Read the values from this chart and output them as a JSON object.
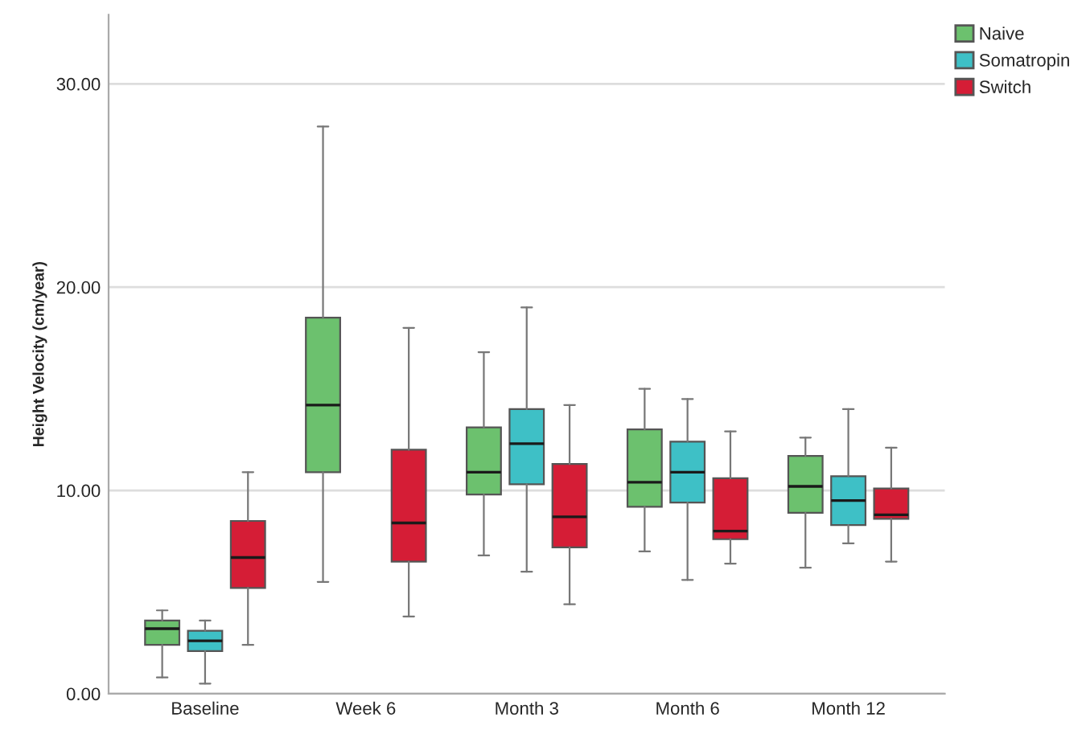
{
  "chart_data": {
    "type": "box",
    "ylabel": "Height Velocity (cm/year)",
    "categories": [
      "Baseline",
      "Week 6",
      "Month 3",
      "Month 6",
      "Month 12"
    ],
    "ylim": [
      0,
      33.4
    ],
    "yticks": [
      {
        "value": 0,
        "label": "0.00"
      },
      {
        "value": 10,
        "label": "10.00"
      },
      {
        "value": 20,
        "label": "20.00"
      },
      {
        "value": 30,
        "label": "30.00"
      }
    ],
    "grid": "y",
    "legend": "top right",
    "series": [
      {
        "name": "Naive",
        "color": "#6cc16e",
        "boxes": [
          {
            "low": 0.8,
            "q1": 2.4,
            "median": 3.2,
            "q3": 3.6,
            "high": 4.1
          },
          {
            "low": 5.5,
            "q1": 10.9,
            "median": 14.2,
            "q3": 18.5,
            "high": 27.9
          },
          {
            "low": 6.8,
            "q1": 9.8,
            "median": 10.9,
            "q3": 13.1,
            "high": 16.8
          },
          {
            "low": 7.0,
            "q1": 9.2,
            "median": 10.4,
            "q3": 13.0,
            "high": 15.0
          },
          {
            "low": 6.2,
            "q1": 8.9,
            "median": 10.2,
            "q3": 11.7,
            "high": 12.6
          }
        ]
      },
      {
        "name": "Somatropin",
        "color": "#3ec0c6",
        "boxes": [
          {
            "low": 0.5,
            "q1": 2.1,
            "median": 2.6,
            "q3": 3.1,
            "high": 3.6
          },
          null,
          {
            "low": 6.0,
            "q1": 10.3,
            "median": 12.3,
            "q3": 14.0,
            "high": 19.0
          },
          {
            "low": 5.6,
            "q1": 9.4,
            "median": 10.9,
            "q3": 12.4,
            "high": 14.5
          },
          {
            "low": 7.4,
            "q1": 8.3,
            "median": 9.5,
            "q3": 10.7,
            "high": 14.0
          }
        ]
      },
      {
        "name": "Switch",
        "color": "#d51d36",
        "boxes": [
          {
            "low": 2.4,
            "q1": 5.2,
            "median": 6.7,
            "q3": 8.5,
            "high": 10.9
          },
          {
            "low": 3.8,
            "q1": 6.5,
            "median": 8.4,
            "q3": 12.0,
            "high": 18.0
          },
          {
            "low": 4.4,
            "q1": 7.2,
            "median": 8.7,
            "q3": 11.3,
            "high": 14.2
          },
          {
            "low": 6.4,
            "q1": 7.6,
            "median": 8.0,
            "q3": 10.6,
            "high": 12.9
          },
          {
            "low": 6.5,
            "q1": 8.6,
            "median": 8.8,
            "q3": 10.1,
            "high": 12.1
          }
        ]
      }
    ]
  }
}
